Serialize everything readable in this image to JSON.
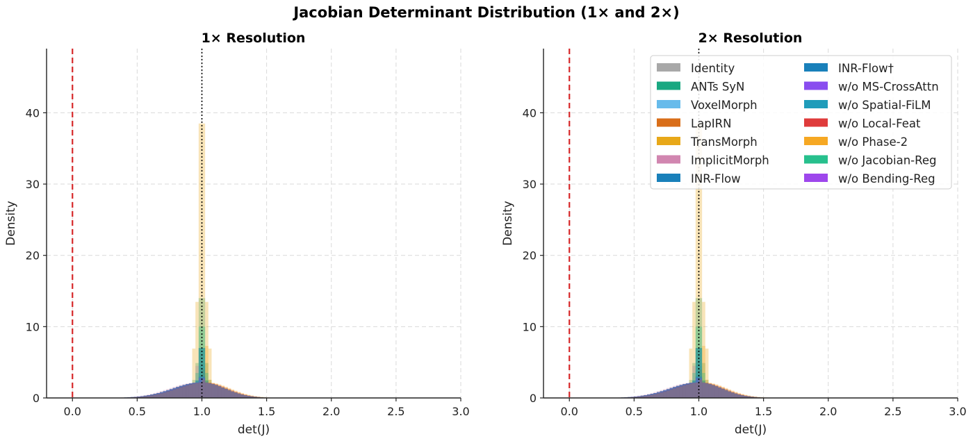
{
  "figure": {
    "title": "Jacobian Determinant Distribution (1× and 2×)"
  },
  "chart_data": [
    {
      "type": "histogram",
      "title": "1× Resolution",
      "xlabel": "det(J)",
      "ylabel": "Density",
      "xlim": [
        -0.2,
        3.0
      ],
      "ylim": [
        0,
        49
      ],
      "xticks": [
        "0.0",
        "0.5",
        "1.0",
        "1.5",
        "2.0",
        "2.5",
        "3.0"
      ],
      "yticks": [
        "0",
        "10",
        "20",
        "30",
        "40"
      ],
      "grid": true,
      "reference_lines": [
        {
          "x": 0.0,
          "style": "dashed",
          "color": "#d62728"
        },
        {
          "x": 1.0,
          "style": "dotted",
          "color": "#000000"
        }
      ],
      "series": [
        {
          "name": "Identity",
          "color": "#9e9e9e",
          "peak": 7.0,
          "center": 1.0
        },
        {
          "name": "ANTs SyN",
          "color": "#009e73",
          "peak": 14.0,
          "center": 1.0
        },
        {
          "name": "VoxelMorph",
          "color": "#56b4e9",
          "peak": 4.5,
          "center": 1.0
        },
        {
          "name": "LapIRN",
          "color": "#d55e00",
          "peak": 4.0,
          "center": 1.02
        },
        {
          "name": "TransMorph",
          "color": "#e69f00",
          "peak": 38.5,
          "center": 1.0
        },
        {
          "name": "ImplicitMorph",
          "color": "#cc79a7",
          "peak": 4.5,
          "center": 0.97
        },
        {
          "name": "INR-Flow",
          "color": "#0072b2",
          "peak": 7.0,
          "center": 1.0
        },
        {
          "name": "INR-Flow†",
          "color": "#0072b2",
          "peak": 7.0,
          "center": 1.0
        },
        {
          "name": "w/o MS-CrossAttn",
          "color": "#7c3aed",
          "peak": 3.0,
          "center": 1.0
        },
        {
          "name": "w/o Spatial-FiLM",
          "color": "#0891b2",
          "peak": 3.0,
          "center": 1.0
        },
        {
          "name": "w/o Local-Feat",
          "color": "#dc2626",
          "peak": 2.5,
          "center": 1.02
        },
        {
          "name": "w/o Phase-2",
          "color": "#f59e0b",
          "peak": 7.3,
          "center": 1.04
        },
        {
          "name": "w/o Jacobian-Reg",
          "color": "#10b981",
          "peak": 10.0,
          "center": 1.0
        },
        {
          "name": "w/o Bending-Reg",
          "color": "#9333ea",
          "peak": 2.8,
          "center": 1.0
        }
      ]
    },
    {
      "type": "histogram",
      "title": "2× Resolution",
      "xlabel": "det(J)",
      "ylabel": "Density",
      "xlim": [
        -0.2,
        3.0
      ],
      "ylim": [
        0,
        49
      ],
      "xticks": [
        "0.0",
        "0.5",
        "1.0",
        "1.5",
        "2.0",
        "2.5",
        "3.0"
      ],
      "yticks": [
        "0",
        "10",
        "20",
        "30",
        "40"
      ],
      "grid": true,
      "legend_position": "top-right",
      "reference_lines": [
        {
          "x": 0.0,
          "style": "dashed",
          "color": "#d62728"
        },
        {
          "x": 1.0,
          "style": "dotted",
          "color": "#000000"
        }
      ],
      "series": [
        {
          "name": "Identity",
          "color": "#9e9e9e",
          "peak": 7.0,
          "center": 1.0
        },
        {
          "name": "ANTs SyN",
          "color": "#009e73",
          "peak": 14.0,
          "center": 1.0
        },
        {
          "name": "VoxelMorph",
          "color": "#56b4e9",
          "peak": 4.5,
          "center": 1.0
        },
        {
          "name": "LapIRN",
          "color": "#d55e00",
          "peak": 4.0,
          "center": 1.02
        },
        {
          "name": "TransMorph",
          "color": "#e69f00",
          "peak": 38.5,
          "center": 1.0
        },
        {
          "name": "ImplicitMorph",
          "color": "#cc79a7",
          "peak": 4.5,
          "center": 0.97
        },
        {
          "name": "INR-Flow",
          "color": "#0072b2",
          "peak": 7.0,
          "center": 1.0
        },
        {
          "name": "INR-Flow†",
          "color": "#0072b2",
          "peak": 7.0,
          "center": 1.0
        },
        {
          "name": "w/o MS-CrossAttn",
          "color": "#7c3aed",
          "peak": 3.0,
          "center": 1.0
        },
        {
          "name": "w/o Spatial-FiLM",
          "color": "#0891b2",
          "peak": 3.0,
          "center": 1.0
        },
        {
          "name": "w/o Local-Feat",
          "color": "#dc2626",
          "peak": 2.5,
          "center": 1.02
        },
        {
          "name": "w/o Phase-2",
          "color": "#f59e0b",
          "peak": 7.3,
          "center": 1.04
        },
        {
          "name": "w/o Jacobian-Reg",
          "color": "#10b981",
          "peak": 10.0,
          "center": 1.0
        },
        {
          "name": "w/o Bending-Reg",
          "color": "#9333ea",
          "peak": 2.8,
          "center": 1.0
        }
      ]
    }
  ]
}
